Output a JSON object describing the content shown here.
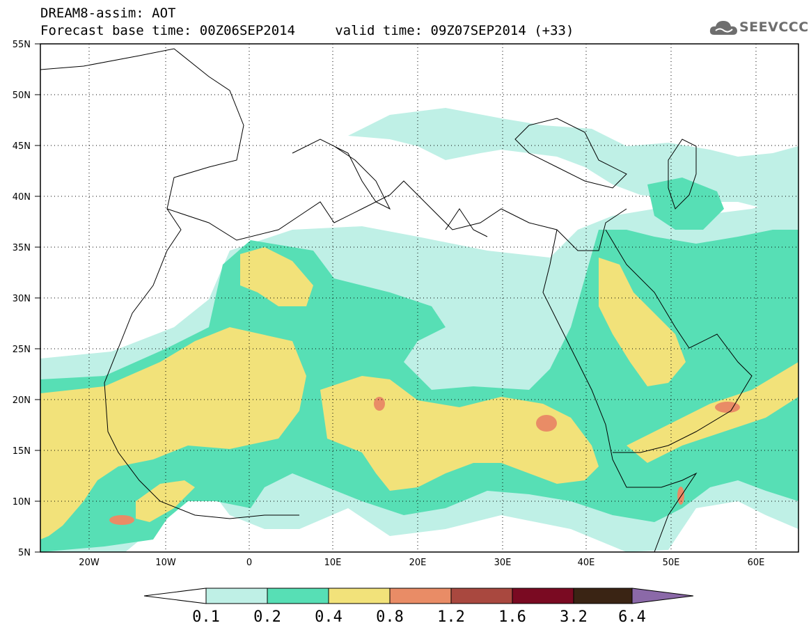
{
  "header": {
    "title_line1": "DREAM8-assim: AOT",
    "title_line2": "Forecast base time: 00Z06SEP2014     valid time: 09Z07SEP2014 (+33)"
  },
  "logo": {
    "text": "SEEVCCC",
    "icon": "cloud-logo-icon"
  },
  "map": {
    "lat_labels": [
      "55N",
      "50N",
      "45N",
      "40N",
      "35N",
      "30N",
      "25N",
      "20N",
      "15N",
      "10N",
      "5N"
    ],
    "lon_labels": [
      "20W",
      "10W",
      "0",
      "10E",
      "20E",
      "30E",
      "40E",
      "50E",
      "60E"
    ],
    "lat_range": [
      5,
      55
    ],
    "lon_range": [
      -25,
      65
    ],
    "grid": "dotted"
  },
  "colorbar": {
    "labels": [
      "0.1",
      "0.2",
      "0.4",
      "0.8",
      "1.2",
      "1.6",
      "3.2",
      "6.4"
    ],
    "colors": {
      "c1": "#bff0e6",
      "c2": "#57dfb5",
      "c3": "#f2e27a",
      "c4": "#e98c66",
      "c5": "#a9483f",
      "c6": "#7a0a22",
      "c7": "#3a2414",
      "c8": "#8b69a8"
    }
  }
}
